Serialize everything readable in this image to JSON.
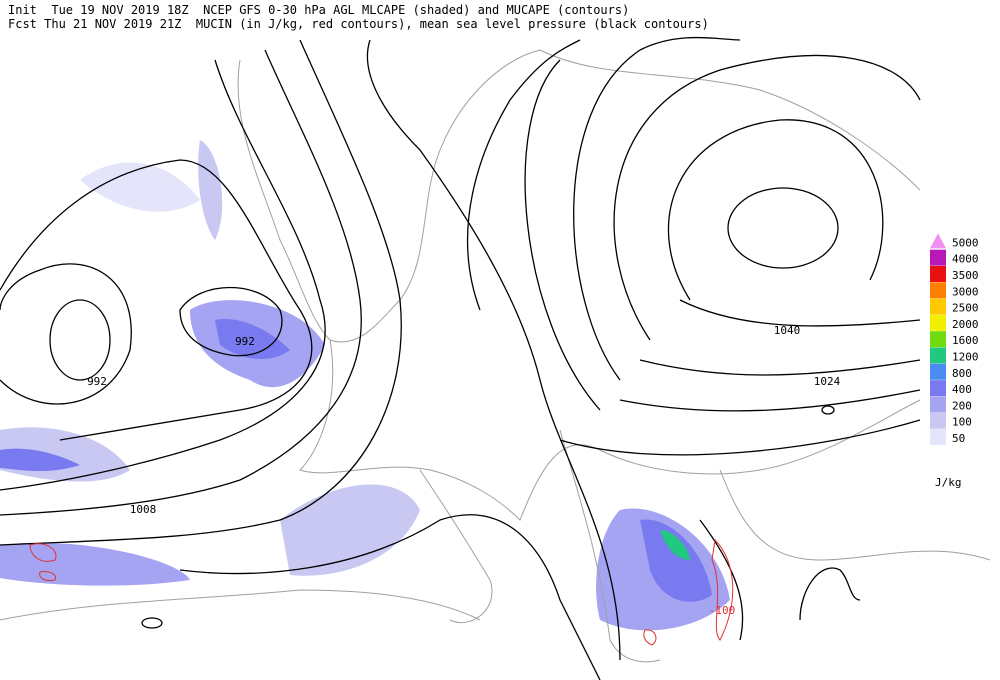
{
  "header": {
    "lines": [
      "Init  Tue 19 NOV 2019 18Z  NCEP GFS 0-30 hPa AGL MLCAPE (shaded) and MUCAPE (contours)",
      "Fcst Thu 21 NOV 2019 21Z  MUCIN (in J/kg, red contours), mean sea level pressure (black contours)"
    ]
  },
  "map": {
    "contour_labels": [
      "992",
      "992",
      "1008",
      "1040",
      "1024",
      "-100"
    ]
  },
  "legend": {
    "unit": "J/kg",
    "items": [
      {
        "label": 50,
        "color": "#e4e4fa"
      },
      {
        "label": 100,
        "color": "#c8c8f2"
      },
      {
        "label": 200,
        "color": "#a4a4f2"
      },
      {
        "label": 400,
        "color": "#7a7af0"
      },
      {
        "label": 800,
        "color": "#4a8cf2"
      },
      {
        "label": 1200,
        "color": "#20c880"
      },
      {
        "label": 1600,
        "color": "#70dc10"
      },
      {
        "label": 2000,
        "color": "#f0f000"
      },
      {
        "label": 2500,
        "color": "#ffc800"
      },
      {
        "label": 3000,
        "color": "#ff8000"
      },
      {
        "label": 3500,
        "color": "#e81010"
      },
      {
        "label": 4000,
        "color": "#b818b8"
      },
      {
        "label": 5000,
        "color": "#f090f0"
      }
    ]
  }
}
